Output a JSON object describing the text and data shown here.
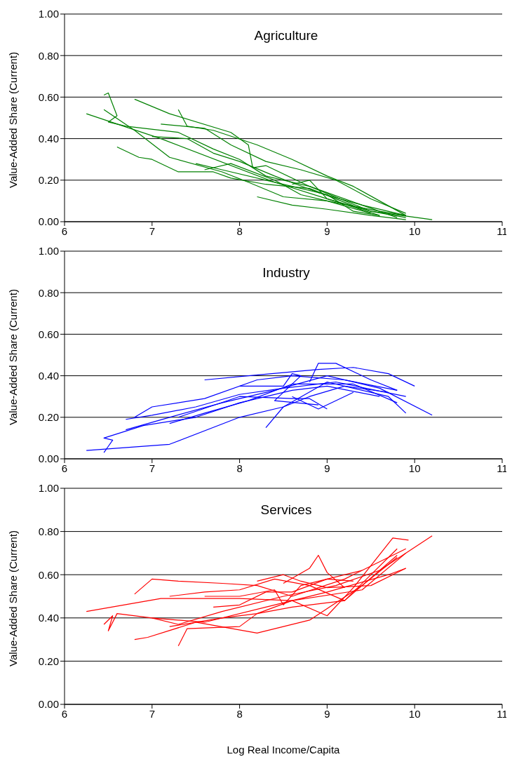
{
  "chart_data": [
    {
      "type": "line",
      "title": "Agriculture",
      "ylabel": "Value-Added Share (Current)",
      "xlim": [
        6,
        11
      ],
      "xticks": [
        6,
        7,
        8,
        9,
        10,
        11
      ],
      "ylim": [
        0,
        1
      ],
      "yticks": [
        {
          "value": 0,
          "label": "0.00"
        },
        {
          "value": 0.2,
          "label": "0.20"
        },
        {
          "value": 0.4,
          "label": "0.40"
        },
        {
          "value": 0.6,
          "label": "0.60"
        },
        {
          "value": 0.8,
          "label": "0.80"
        },
        {
          "value": 1,
          "label": "1.00"
        }
      ],
      "grid": "y",
      "marker": "none",
      "line_style": "solid",
      "series": [
        {
          "color": "#008000",
          "x": [
            6.25,
            7.1,
            8.4,
            9.0,
            9.5,
            10.2
          ],
          "values": [
            0.52,
            0.4,
            0.19,
            0.11,
            0.05,
            0.01
          ]
        },
        {
          "color": "#008000",
          "x": [
            6.45,
            6.5,
            6.6,
            6.5,
            6.7,
            7.3,
            7.7,
            8.0,
            8.3,
            8.8,
            9.5,
            9.9
          ],
          "values": [
            0.61,
            0.62,
            0.51,
            0.48,
            0.46,
            0.43,
            0.35,
            0.3,
            0.22,
            0.17,
            0.05,
            0.02
          ]
        },
        {
          "color": "#008000",
          "x": [
            6.8,
            7.2,
            7.9,
            8.1,
            8.15,
            8.3,
            8.8,
            9.4,
            9.9
          ],
          "values": [
            0.59,
            0.52,
            0.43,
            0.37,
            0.26,
            0.27,
            0.17,
            0.08,
            0.03
          ]
        },
        {
          "color": "#008000",
          "x": [
            6.45,
            6.8,
            7.2,
            7.8,
            8.1,
            8.5,
            9.0,
            9.5
          ],
          "values": [
            0.54,
            0.44,
            0.31,
            0.24,
            0.19,
            0.12,
            0.1,
            0.04
          ]
        },
        {
          "color": "#008000",
          "x": [
            6.6,
            6.85,
            7.0,
            7.3,
            7.7,
            7.9,
            8.3,
            8.8,
            9.4
          ],
          "values": [
            0.36,
            0.31,
            0.3,
            0.24,
            0.24,
            0.21,
            0.18,
            0.16,
            0.06
          ]
        },
        {
          "color": "#008000",
          "x": [
            7.3,
            7.4,
            7.7,
            8.2,
            8.6,
            9.0,
            9.3,
            9.9
          ],
          "values": [
            0.54,
            0.46,
            0.44,
            0.37,
            0.3,
            0.22,
            0.17,
            0.03
          ]
        },
        {
          "color": "#008000",
          "x": [
            7.0,
            7.4,
            7.7,
            8.0,
            8.4,
            8.9,
            9.4,
            9.8
          ],
          "values": [
            0.41,
            0.4,
            0.33,
            0.29,
            0.22,
            0.14,
            0.08,
            0.02
          ]
        },
        {
          "color": "#008000",
          "x": [
            7.1,
            7.6,
            7.9,
            8.3,
            8.7,
            9.1,
            9.5,
            9.9
          ],
          "values": [
            0.47,
            0.45,
            0.37,
            0.29,
            0.25,
            0.2,
            0.11,
            0.04
          ]
        },
        {
          "color": "#008000",
          "x": [
            7.6,
            7.9,
            8.4,
            8.7,
            9.0,
            9.6,
            9.9
          ],
          "values": [
            0.25,
            0.28,
            0.2,
            0.13,
            0.1,
            0.05,
            0.03
          ]
        },
        {
          "color": "#008000",
          "x": [
            7.5,
            7.8,
            8.3,
            8.6,
            9.0,
            9.3,
            9.6
          ],
          "values": [
            0.28,
            0.25,
            0.2,
            0.17,
            0.13,
            0.05,
            0.03
          ]
        },
        {
          "color": "#008000",
          "x": [
            8.6,
            8.8,
            9.0,
            9.6
          ],
          "values": [
            0.18,
            0.2,
            0.11,
            0.03
          ]
        },
        {
          "color": "#008000",
          "x": [
            8.2,
            8.6,
            9.0,
            9.5,
            9.9
          ],
          "values": [
            0.12,
            0.08,
            0.06,
            0.03,
            0.01
          ]
        }
      ]
    },
    {
      "type": "line",
      "title": "Industry",
      "ylabel": "Value-Added Share (Current)",
      "xlim": [
        6,
        11
      ],
      "xticks": [
        6,
        7,
        8,
        9,
        10,
        11
      ],
      "ylim": [
        0,
        1
      ],
      "yticks": [
        {
          "value": 0,
          "label": "0.00"
        },
        {
          "value": 0.2,
          "label": "0.20"
        },
        {
          "value": 0.4,
          "label": "0.40"
        },
        {
          "value": 0.6,
          "label": "0.60"
        },
        {
          "value": 0.8,
          "label": "0.80"
        },
        {
          "value": 1,
          "label": "1.00"
        }
      ],
      "grid": "y",
      "marker": "none",
      "line_style": "solid",
      "series": [
        {
          "color": "#0000ff",
          "x": [
            6.25,
            7.2,
            8.0,
            8.5,
            9.0,
            9.7,
            9.9
          ],
          "values": [
            0.04,
            0.07,
            0.2,
            0.25,
            0.37,
            0.3,
            0.22
          ]
        },
        {
          "color": "#0000ff",
          "x": [
            6.45,
            6.5,
            6.55,
            6.45,
            6.9,
            7.5,
            8.0,
            8.6,
            9.0,
            9.6
          ],
          "values": [
            0.03,
            0.06,
            0.09,
            0.1,
            0.16,
            0.2,
            0.27,
            0.33,
            0.35,
            0.3
          ]
        },
        {
          "color": "#0000ff",
          "x": [
            6.8,
            7.0,
            7.6,
            8.2,
            8.6,
            9.2,
            9.8
          ],
          "values": [
            0.2,
            0.25,
            0.29,
            0.38,
            0.4,
            0.38,
            0.33
          ]
        },
        {
          "color": "#0000ff",
          "x": [
            7.6,
            8.1,
            8.9,
            9.3,
            9.7,
            10.0
          ],
          "values": [
            0.38,
            0.4,
            0.43,
            0.44,
            0.41,
            0.35
          ]
        },
        {
          "color": "#0000ff",
          "x": [
            6.7,
            7.2,
            7.8,
            8.4,
            9.0,
            9.6,
            10.2
          ],
          "values": [
            0.14,
            0.2,
            0.27,
            0.33,
            0.4,
            0.34,
            0.21
          ]
        },
        {
          "color": "#0000ff",
          "x": [
            6.7,
            7.0,
            7.5,
            8.0,
            8.5,
            9.1,
            9.9
          ],
          "values": [
            0.19,
            0.21,
            0.25,
            0.31,
            0.34,
            0.37,
            0.3
          ]
        },
        {
          "color": "#0000ff",
          "x": [
            7.2,
            7.6,
            8.1,
            8.6,
            9.3,
            9.8
          ],
          "values": [
            0.17,
            0.22,
            0.28,
            0.36,
            0.36,
            0.27
          ]
        },
        {
          "color": "#0000ff",
          "x": [
            8.3,
            8.5,
            8.8,
            9.2,
            9.7
          ],
          "values": [
            0.15,
            0.25,
            0.3,
            0.35,
            0.32
          ]
        },
        {
          "color": "#0000ff",
          "x": [
            8.8,
            8.9,
            9.1,
            9.5,
            9.8
          ],
          "values": [
            0.37,
            0.46,
            0.46,
            0.38,
            0.33
          ]
        },
        {
          "color": "#0000ff",
          "x": [
            8.0,
            8.5,
            8.6,
            8.7,
            8.4,
            8.9
          ],
          "values": [
            0.35,
            0.35,
            0.41,
            0.4,
            0.28,
            0.26
          ]
        },
        {
          "color": "#0000ff",
          "x": [
            7.3,
            8.0,
            8.6,
            8.8,
            9.0
          ],
          "values": [
            0.2,
            0.3,
            0.29,
            0.29,
            0.24
          ]
        },
        {
          "color": "#0000ff",
          "x": [
            8.6,
            8.9,
            9.3
          ],
          "values": [
            0.3,
            0.24,
            0.32
          ]
        }
      ]
    },
    {
      "type": "line",
      "title": "Services",
      "xlabel": "Log Real Income/Capita",
      "ylabel": "Value-Added Share (Current)",
      "xlim": [
        6,
        11
      ],
      "xticks": [
        6,
        7,
        8,
        9,
        10,
        11
      ],
      "ylim": [
        0,
        1
      ],
      "yticks": [
        {
          "value": 0,
          "label": "0.00"
        },
        {
          "value": 0.2,
          "label": "0.20"
        },
        {
          "value": 0.4,
          "label": "0.40"
        },
        {
          "value": 0.6,
          "label": "0.60"
        },
        {
          "value": 0.8,
          "label": "0.80"
        },
        {
          "value": 1,
          "label": "1.00"
        }
      ],
      "grid": "y",
      "marker": "none",
      "line_style": "solid",
      "series": [
        {
          "color": "#ff0000",
          "x": [
            6.25,
            7.1,
            8.0,
            8.6,
            9.4,
            9.9
          ],
          "values": [
            0.43,
            0.49,
            0.49,
            0.48,
            0.53,
            0.7
          ]
        },
        {
          "color": "#ff0000",
          "x": [
            6.8,
            7.0,
            7.3,
            7.8,
            8.2,
            8.6,
            9.2,
            9.9
          ],
          "values": [
            0.51,
            0.58,
            0.57,
            0.56,
            0.55,
            0.5,
            0.58,
            0.72
          ]
        },
        {
          "color": "#ff0000",
          "x": [
            6.45,
            6.55,
            6.5,
            6.6,
            7.0,
            7.6,
            8.3,
            9.0,
            9.7,
            9.9
          ],
          "values": [
            0.37,
            0.41,
            0.34,
            0.42,
            0.4,
            0.38,
            0.45,
            0.52,
            0.6,
            0.63
          ]
        },
        {
          "color": "#ff0000",
          "x": [
            6.8,
            6.95,
            7.5,
            8.2,
            8.8,
            9.4,
            9.8
          ],
          "values": [
            0.3,
            0.31,
            0.38,
            0.33,
            0.39,
            0.55,
            0.68
          ]
        },
        {
          "color": "#ff0000",
          "x": [
            7.3,
            7.4,
            8.0,
            8.2,
            8.6,
            9.2,
            9.8
          ],
          "values": [
            0.27,
            0.35,
            0.36,
            0.42,
            0.45,
            0.48,
            0.72
          ]
        },
        {
          "color": "#ff0000",
          "x": [
            7.0,
            7.3,
            7.8,
            8.5,
            9.1,
            9.6,
            10.2
          ],
          "values": [
            0.4,
            0.37,
            0.43,
            0.5,
            0.55,
            0.62,
            0.78
          ]
        },
        {
          "color": "#ff0000",
          "x": [
            7.2,
            7.6,
            8.0,
            8.4,
            8.8,
            9.2,
            9.8
          ],
          "values": [
            0.5,
            0.52,
            0.53,
            0.58,
            0.55,
            0.48,
            0.69
          ]
        },
        {
          "color": "#ff0000",
          "x": [
            8.2,
            8.5,
            8.7,
            9.0,
            9.5,
            9.9
          ],
          "values": [
            0.57,
            0.6,
            0.57,
            0.54,
            0.55,
            0.63
          ]
        },
        {
          "color": "#ff0000",
          "x": [
            8.5,
            8.8,
            8.9,
            9.0,
            9.2
          ],
          "values": [
            0.56,
            0.63,
            0.69,
            0.61,
            0.54
          ]
        },
        {
          "color": "#ff0000",
          "x": [
            7.2,
            7.8,
            8.2,
            8.6,
            9.0,
            9.3,
            9.75,
            9.93
          ],
          "values": [
            0.36,
            0.4,
            0.42,
            0.48,
            0.41,
            0.54,
            0.77,
            0.76
          ]
        },
        {
          "color": "#ff0000",
          "x": [
            7.6,
            8.0,
            8.4,
            8.5,
            8.7,
            9.4
          ],
          "values": [
            0.5,
            0.5,
            0.53,
            0.46,
            0.55,
            0.62
          ]
        },
        {
          "color": "#ff0000",
          "x": [
            7.7,
            8.0,
            8.3,
            8.6,
            9.0,
            9.3
          ],
          "values": [
            0.45,
            0.46,
            0.52,
            0.52,
            0.58,
            0.57
          ]
        }
      ]
    }
  ]
}
